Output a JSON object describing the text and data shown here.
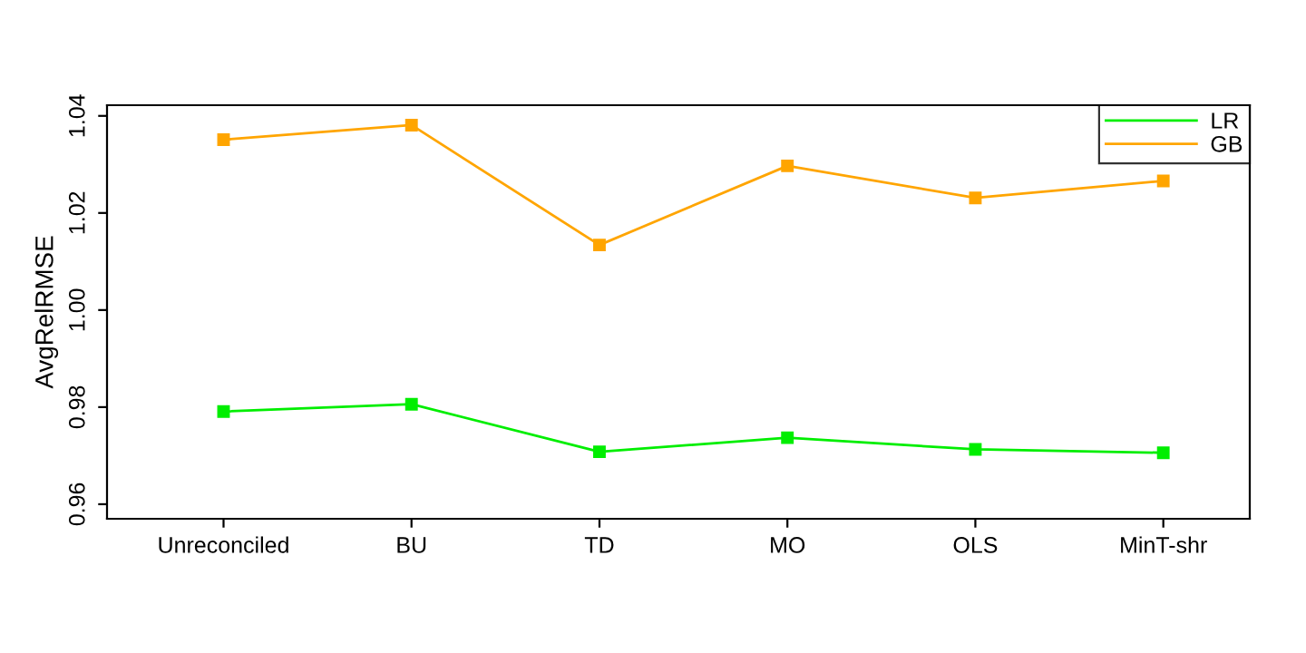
{
  "chart_data": {
    "type": "line",
    "ylabel": "AvgRelRMSE",
    "categories": [
      "Unreconciled",
      "BU",
      "TD",
      "MO",
      "OLS",
      "MinT-shr"
    ],
    "series": [
      {
        "name": "LR",
        "color": "#00ee00",
        "values": [
          0.9791,
          0.9806,
          0.9708,
          0.9737,
          0.9713,
          0.9706
        ]
      },
      {
        "name": "GB",
        "color": "#ffa500",
        "values": [
          1.0351,
          1.0381,
          1.0134,
          1.0297,
          1.0231,
          1.0266
        ]
      }
    ],
    "ylim": [
      0.957,
      1.0422
    ],
    "yticks": [
      {
        "value": 0.96,
        "label": "0.96"
      },
      {
        "value": 0.98,
        "label": "0.98"
      },
      {
        "value": 1.0,
        "label": "1.00"
      },
      {
        "value": 1.02,
        "label": "1.02"
      },
      {
        "value": 1.04,
        "label": "1.04"
      }
    ],
    "marker": "square",
    "line_style": "solid",
    "grid": false,
    "legend": "top right"
  }
}
